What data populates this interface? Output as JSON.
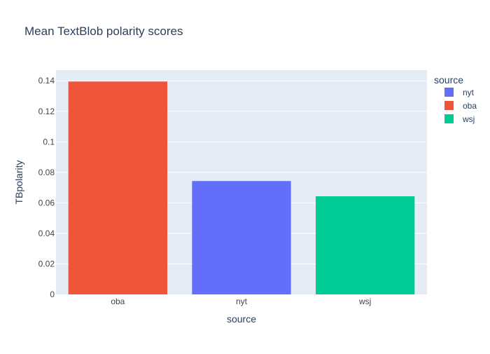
{
  "chart_data": {
    "type": "bar",
    "title": "Mean TextBlob polarity scores",
    "xlabel": "source",
    "ylabel": "TBpolarity",
    "categories": [
      "oba",
      "nyt",
      "wsj"
    ],
    "values": [
      0.1395,
      0.0743,
      0.0643
    ],
    "ylim": [
      0,
      0.147
    ],
    "yticks": [
      0,
      0.02,
      0.04,
      0.06,
      0.08,
      0.1,
      0.12,
      0.14
    ],
    "ytick_labels": [
      "0",
      "0.02",
      "0.04",
      "0.06",
      "0.08",
      "0.1",
      "0.12",
      "0.14"
    ],
    "grid": true,
    "legend": {
      "title": "source",
      "placement": "right",
      "entries": [
        "nyt",
        "oba",
        "wsj"
      ]
    },
    "colors": {
      "nyt": "#636efa",
      "oba": "#ef553b",
      "wsj": "#00cc96",
      "plot_bg": "#e5ecf6",
      "grid": "#ffffff",
      "text": "#2a3f5f",
      "tick_text": "#444444"
    }
  }
}
